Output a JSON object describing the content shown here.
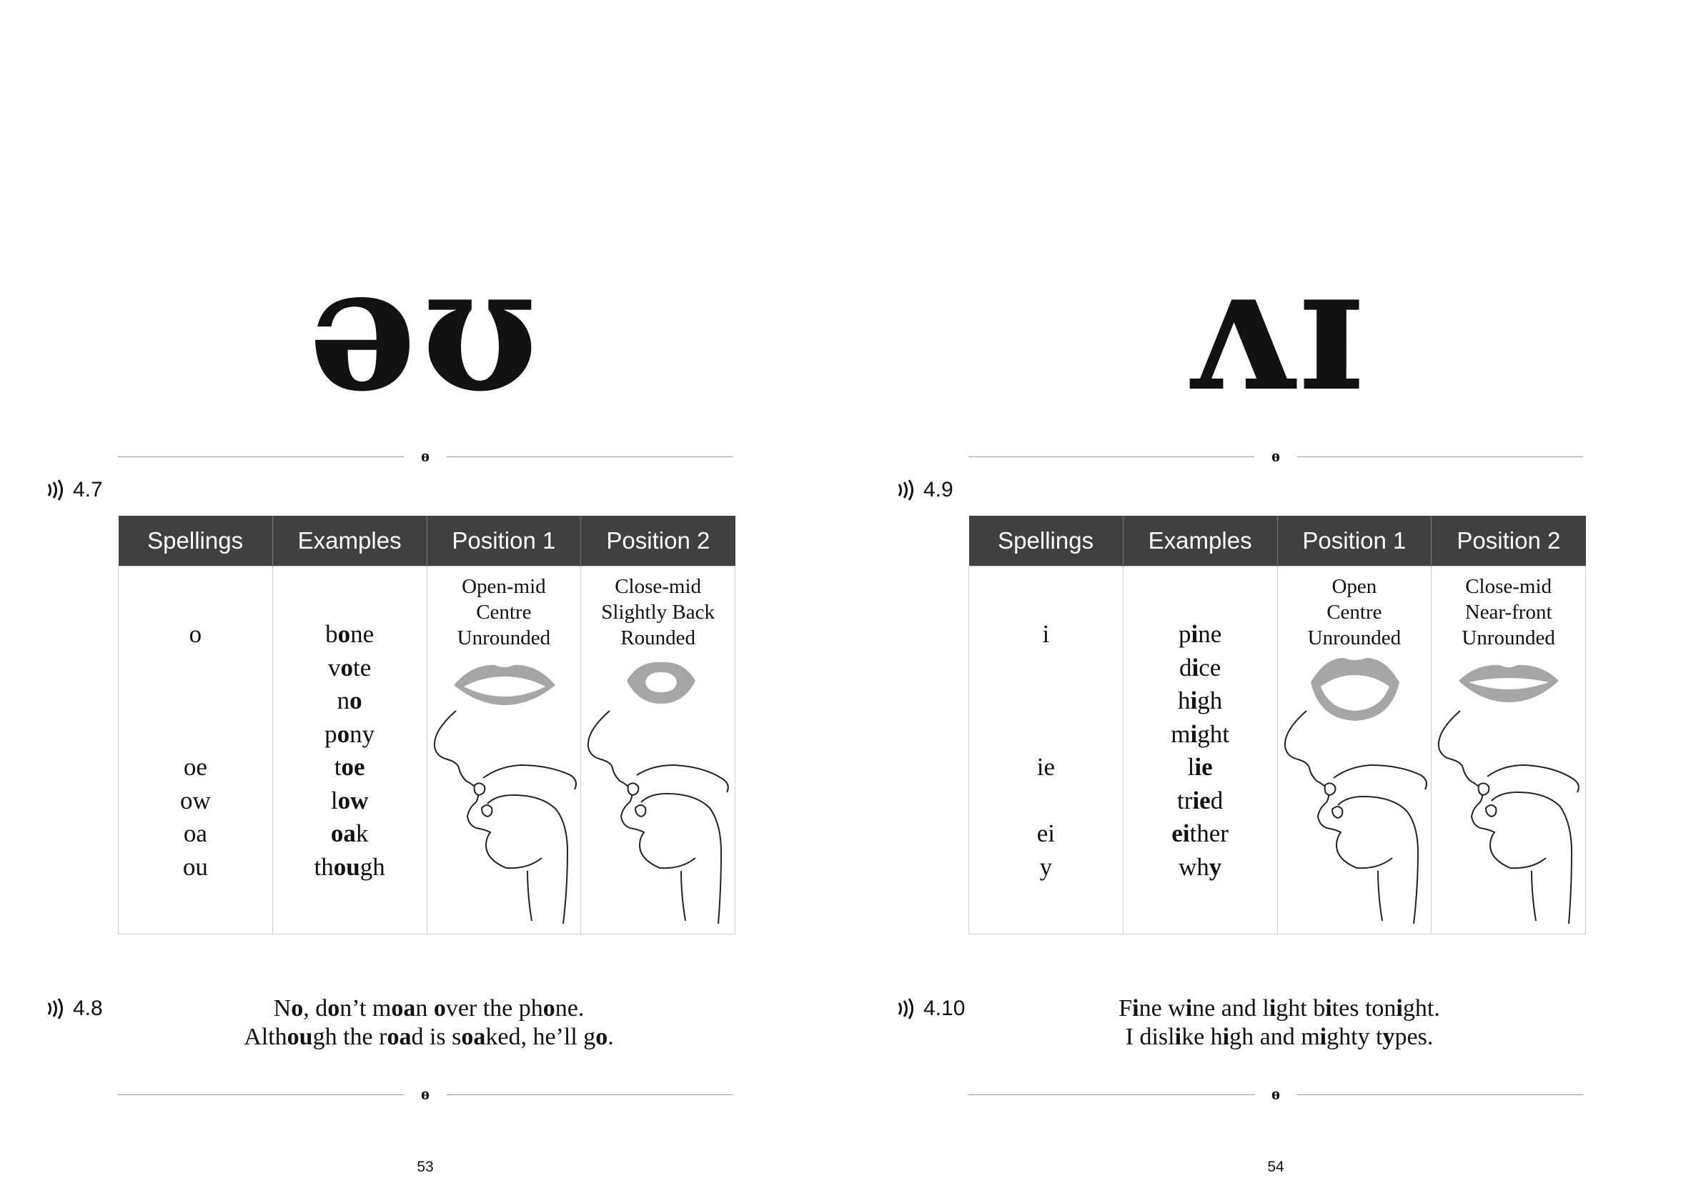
{
  "left_page": {
    "phoneme": "əʊ",
    "ornament_glyph": "ɵ",
    "table_track": "4.7",
    "headers": [
      "Spellings",
      "Examples",
      "Position 1",
      "Position 2"
    ],
    "spellings": [
      "o",
      "",
      "",
      "",
      "oe",
      "ow",
      "oa",
      "ou"
    ],
    "examples": [
      [
        {
          "t": "b"
        },
        {
          "t": "o",
          "b": true
        },
        {
          "t": "ne"
        }
      ],
      [
        {
          "t": "v"
        },
        {
          "t": "o",
          "b": true
        },
        {
          "t": "te"
        }
      ],
      [
        {
          "t": "n"
        },
        {
          "t": "o",
          "b": true
        }
      ],
      [
        {
          "t": "p"
        },
        {
          "t": "o",
          "b": true
        },
        {
          "t": "ny"
        }
      ],
      [
        {
          "t": "t"
        },
        {
          "t": "oe",
          "b": true
        }
      ],
      [
        {
          "t": "l"
        },
        {
          "t": "ow",
          "b": true
        }
      ],
      [
        {
          "t": "oa",
          "b": true
        },
        {
          "t": "k"
        }
      ],
      [
        {
          "t": "th"
        },
        {
          "t": "ou",
          "b": true
        },
        {
          "t": "gh"
        }
      ]
    ],
    "position1": [
      "Open-mid",
      "Centre",
      "Unrounded"
    ],
    "position2": [
      "Close-mid",
      "Slightly Back",
      "Rounded"
    ],
    "sentence_track": "4.8",
    "sentences": [
      [
        {
          "t": "N"
        },
        {
          "t": "o",
          "b": true
        },
        {
          "t": ", d"
        },
        {
          "t": "o",
          "b": true
        },
        {
          "t": "n’t m"
        },
        {
          "t": "oa",
          "b": true
        },
        {
          "t": "n "
        },
        {
          "t": "o",
          "b": true
        },
        {
          "t": "ver the ph"
        },
        {
          "t": "o",
          "b": true
        },
        {
          "t": "ne."
        }
      ],
      [
        {
          "t": "Alth"
        },
        {
          "t": "ou",
          "b": true
        },
        {
          "t": "gh the r"
        },
        {
          "t": "oa",
          "b": true
        },
        {
          "t": "d is s"
        },
        {
          "t": "oa",
          "b": true
        },
        {
          "t": "ked, he’ll g"
        },
        {
          "t": "o",
          "b": true
        },
        {
          "t": "."
        }
      ]
    ],
    "page_number": "53"
  },
  "right_page": {
    "phoneme": "ʌɪ",
    "ornament_glyph": "ɵ",
    "table_track": "4.9",
    "headers": [
      "Spellings",
      "Examples",
      "Position 1",
      "Position 2"
    ],
    "spellings": [
      "i",
      "",
      "",
      "",
      "ie",
      "",
      "ei",
      "y"
    ],
    "examples": [
      [
        {
          "t": "p"
        },
        {
          "t": "i",
          "b": true
        },
        {
          "t": "ne"
        }
      ],
      [
        {
          "t": "d"
        },
        {
          "t": "i",
          "b": true
        },
        {
          "t": "ce"
        }
      ],
      [
        {
          "t": "h"
        },
        {
          "t": "i",
          "b": true
        },
        {
          "t": "gh"
        }
      ],
      [
        {
          "t": "m"
        },
        {
          "t": "i",
          "b": true
        },
        {
          "t": "ght"
        }
      ],
      [
        {
          "t": "l"
        },
        {
          "t": "ie",
          "b": true
        }
      ],
      [
        {
          "t": "tr"
        },
        {
          "t": "ie",
          "b": true
        },
        {
          "t": "d"
        }
      ],
      [
        {
          "t": "ei",
          "b": true
        },
        {
          "t": "ther"
        }
      ],
      [
        {
          "t": "wh"
        },
        {
          "t": "y",
          "b": true
        }
      ]
    ],
    "position1": [
      "Open",
      "Centre",
      "Unrounded"
    ],
    "position2": [
      "Close-mid",
      "Near-front",
      "Unrounded"
    ],
    "sentence_track": "4.10",
    "sentences": [
      [
        {
          "t": "F"
        },
        {
          "t": "i",
          "b": true
        },
        {
          "t": "ne w"
        },
        {
          "t": "i",
          "b": true
        },
        {
          "t": "ne and l"
        },
        {
          "t": "i",
          "b": true
        },
        {
          "t": "ght b"
        },
        {
          "t": "i",
          "b": true
        },
        {
          "t": "tes ton"
        },
        {
          "t": "i",
          "b": true
        },
        {
          "t": "ght."
        }
      ],
      [
        {
          "t": "I disl"
        },
        {
          "t": "i",
          "b": true
        },
        {
          "t": "ke h"
        },
        {
          "t": "i",
          "b": true
        },
        {
          "t": "gh and m"
        },
        {
          "t": "i",
          "b": true
        },
        {
          "t": "ghty t"
        },
        {
          "t": "y",
          "b": true
        },
        {
          "t": "pes."
        }
      ]
    ],
    "page_number": "54"
  },
  "colors": {
    "header_bg": "#404040",
    "lips": "#a6a6a6",
    "rule": "#9a9a9a",
    "cell_border": "#cfcfcf"
  },
  "icons": {
    "audio": "audio-waves-icon",
    "mouth": "lips-icon",
    "profile": "speech-profile-icon"
  }
}
